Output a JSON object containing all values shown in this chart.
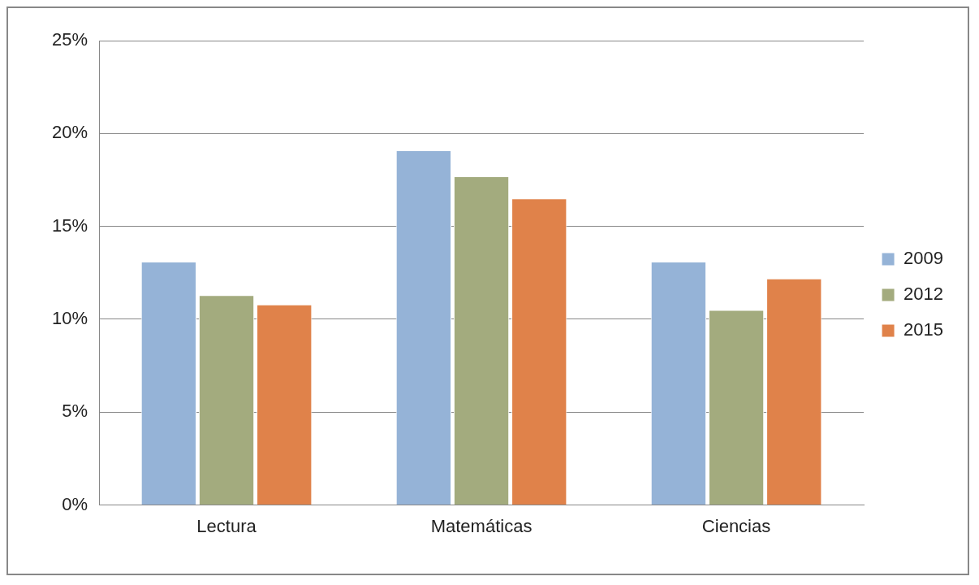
{
  "chart_data": {
    "type": "bar",
    "categories": [
      "Lectura",
      "Matemáticas",
      "Ciencias"
    ],
    "series": [
      {
        "name": "2009",
        "color": "#95b3d7",
        "values": [
          13.1,
          19.1,
          13.1
        ]
      },
      {
        "name": "2012",
        "color": "#a3ab7e",
        "values": [
          11.3,
          17.7,
          10.5
        ]
      },
      {
        "name": "2015",
        "color": "#e0824a",
        "values": [
          10.8,
          16.5,
          12.2
        ]
      }
    ],
    "ylim": [
      0,
      25
    ],
    "yticks": [
      {
        "value": 0,
        "label": "0%"
      },
      {
        "value": 5,
        "label": "5%"
      },
      {
        "value": 10,
        "label": "10%"
      },
      {
        "value": 15,
        "label": "15%"
      },
      {
        "value": 20,
        "label": "20%"
      },
      {
        "value": 25,
        "label": "25%"
      }
    ],
    "grid": "y",
    "legend": "right"
  }
}
